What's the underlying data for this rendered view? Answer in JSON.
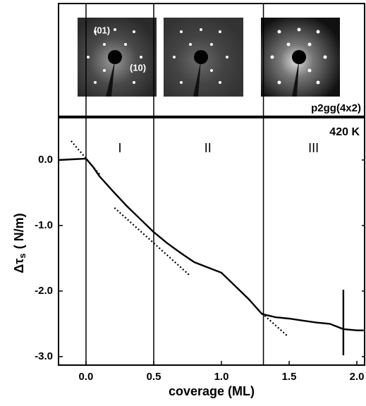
{
  "chart_data": {
    "type": "line",
    "x_label": "coverage (ML)",
    "y_label": {
      "main": "Δτ",
      "sub": "s",
      "unit": "( N/m)"
    },
    "temperature": "420 K",
    "regions": [
      {
        "label": "I",
        "x": 0.25
      },
      {
        "label": "II",
        "x": 0.9
      },
      {
        "label": "III",
        "x": 1.68
      }
    ],
    "boundaries": [
      0.0,
      0.5,
      1.31
    ],
    "leed_labels": [
      "(01)",
      "(10)",
      "p2gg(4x2)"
    ],
    "xlim": [
      -0.203,
      2.057
    ],
    "ylim": [
      -3.13,
      0.645
    ],
    "xticks": [
      {
        "value": 0,
        "label": "0.0"
      },
      {
        "value": 0.5,
        "label": "0.5"
      },
      {
        "value": 1,
        "label": "1.0"
      },
      {
        "value": 1.5,
        "label": "1.5"
      },
      {
        "value": 2,
        "label": "2.0"
      }
    ],
    "yticks": [
      {
        "value": 0,
        "label": "0.0"
      },
      {
        "value": -1,
        "label": "-1.0"
      },
      {
        "value": -2,
        "label": "-2.0"
      },
      {
        "value": -3,
        "label": "-3.0"
      }
    ],
    "series": [
      {
        "color": "#000000",
        "style": "solid",
        "x": [
          -0.2,
          -0.1,
          0,
          0.05,
          0.1,
          0.2,
          0.3,
          0.4,
          0.5,
          0.6,
          0.7,
          0.8,
          0.9,
          1.0,
          1.1,
          1.2,
          1.3,
          1.4,
          1.5,
          1.6,
          1.7,
          1.8,
          1.9,
          2.0,
          2.05
        ],
        "values": [
          0.0,
          0.01,
          0.02,
          -0.1,
          -0.25,
          -0.48,
          -0.7,
          -0.9,
          -1.1,
          -1.27,
          -1.42,
          -1.56,
          -1.64,
          -1.72,
          -1.92,
          -2.12,
          -2.35,
          -2.4,
          -2.42,
          -2.45,
          -2.48,
          -2.5,
          -2.58,
          -2.6,
          -2.6
        ]
      },
      {
        "color": "#000000",
        "style": "solid",
        "x": [
          1.9,
          1.9
        ],
        "values": [
          -1.98,
          -2.98
        ]
      },
      {
        "color": "#000000",
        "style": "dotted",
        "x": [
          -0.11,
          0.1
        ],
        "values": [
          0.29,
          -0.22
        ]
      },
      {
        "color": "#000000",
        "style": "dotted",
        "x": [
          0.21,
          0.76
        ],
        "values": [
          -0.73,
          -1.75
        ]
      },
      {
        "color": "#000000",
        "style": "dotted",
        "x": [
          1.3,
          1.49
        ],
        "values": [
          -2.34,
          -2.69
        ]
      }
    ]
  }
}
